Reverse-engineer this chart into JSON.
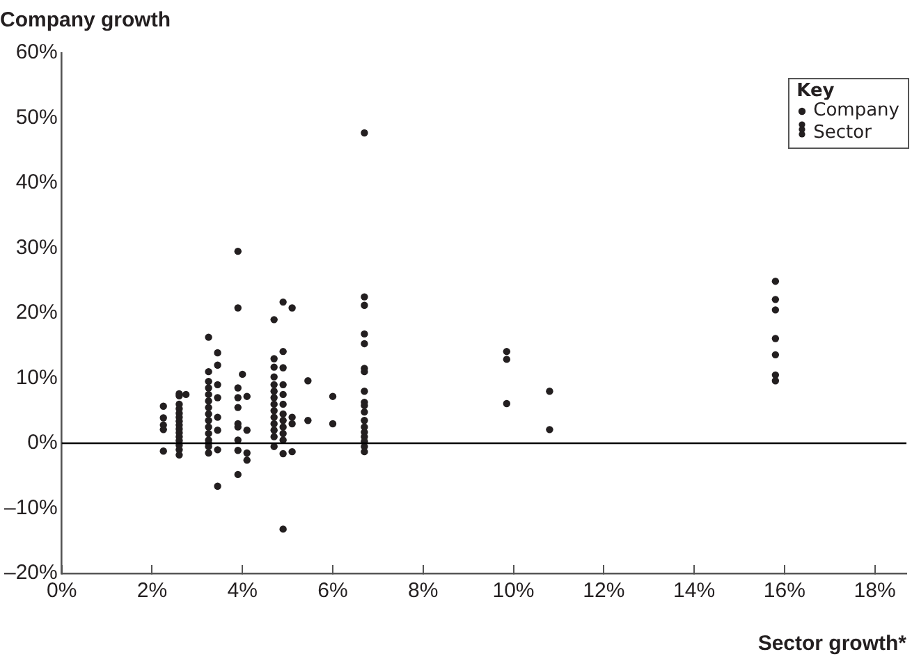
{
  "chart_data": {
    "type": "scatter",
    "ylabel": "Company growth",
    "xlabel": "Sector growth*",
    "legend_title": "Key",
    "annotations": [
      "Sector"
    ],
    "xlim": [
      0,
      18.7
    ],
    "xticks": [
      {
        "value": 0,
        "label": "0%"
      },
      {
        "value": 2,
        "label": "2%"
      },
      {
        "value": 4,
        "label": "4%"
      },
      {
        "value": 6,
        "label": "6%"
      },
      {
        "value": 8,
        "label": "8%"
      },
      {
        "value": 10,
        "label": "10%"
      },
      {
        "value": 12,
        "label": "12%"
      },
      {
        "value": 14,
        "label": "14%"
      },
      {
        "value": 16,
        "label": "16%"
      },
      {
        "value": 18,
        "label": "18%"
      }
    ],
    "ylim": [
      -20,
      60
    ],
    "yticks": [
      {
        "value": -20,
        "label": "–20%"
      },
      {
        "value": -10,
        "label": "–10%"
      },
      {
        "value": 0,
        "label": "0%"
      },
      {
        "value": 10,
        "label": "10%"
      },
      {
        "value": 20,
        "label": "20%"
      },
      {
        "value": 30,
        "label": "30%"
      },
      {
        "value": 40,
        "label": "40%"
      },
      {
        "value": 50,
        "label": "50%"
      },
      {
        "value": 60,
        "label": "60%"
      }
    ],
    "ref_lines": [
      {
        "axis": "y",
        "value": 0,
        "color": "#000000"
      }
    ],
    "grid": false,
    "legend": "top right",
    "marker": "circle",
    "series": [
      {
        "name": "Company",
        "color": "#231f20",
        "x": [
          2.25,
          2.25,
          2.25,
          2.25,
          2.25,
          2.6,
          2.6,
          2.6,
          2.6,
          2.6,
          2.6,
          2.6,
          2.6,
          2.6,
          2.6,
          2.6,
          2.6,
          2.6,
          2.6,
          2.6,
          2.75,
          3.25,
          3.25,
          3.25,
          3.25,
          3.25,
          3.25,
          3.25,
          3.25,
          3.25,
          3.25,
          3.25,
          3.25,
          3.25,
          3.25,
          3.25,
          3.45,
          3.45,
          3.45,
          3.45,
          3.45,
          3.45,
          3.45,
          3.45,
          3.9,
          3.9,
          4.0,
          3.9,
          3.9,
          3.9,
          3.9,
          3.9,
          3.9,
          3.9,
          3.9,
          4.1,
          4.1,
          4.1,
          4.1,
          4.7,
          4.7,
          4.7,
          4.7,
          4.7,
          4.7,
          4.7,
          4.7,
          4.7,
          4.7,
          4.7,
          4.7,
          4.7,
          4.7,
          4.9,
          4.9,
          4.9,
          4.9,
          4.9,
          4.9,
          4.9,
          4.9,
          4.9,
          4.9,
          4.9,
          4.9,
          4.9,
          5.1,
          5.1,
          5.1,
          5.1,
          5.45,
          5.45,
          6.0,
          6.0,
          6.7,
          6.7,
          6.7,
          6.7,
          6.7,
          6.7,
          6.7,
          6.7,
          6.7,
          6.7,
          6.7,
          6.7,
          6.7,
          6.7,
          6.7,
          6.7,
          6.7,
          6.7,
          9.85,
          9.85,
          9.85,
          10.8,
          10.8,
          15.8,
          15.8,
          15.8,
          15.8,
          15.8,
          15.8,
          15.8
        ],
        "values": [
          5.7,
          3.9,
          2.8,
          2.1,
          -1.2,
          7.6,
          7.3,
          6,
          5.3,
          4.6,
          4,
          3.4,
          2.8,
          2.2,
          1.6,
          1,
          0.4,
          -0.3,
          -1,
          -1.8,
          7.5,
          16.3,
          11,
          9.5,
          8.5,
          7.5,
          6.5,
          5.5,
          4.5,
          3.5,
          2.5,
          1.5,
          0.5,
          0,
          -0.5,
          -1.5,
          13.9,
          12,
          9,
          7,
          4,
          2,
          -1,
          -6.6,
          29.5,
          20.8,
          10.6,
          8.5,
          7,
          5.5,
          3,
          2.5,
          0.5,
          -1.1,
          -4.8,
          7.2,
          2,
          -1.5,
          -2.6,
          19,
          13,
          11.7,
          10.2,
          9,
          8,
          7,
          6,
          5,
          4,
          3,
          2,
          1,
          -0.5,
          21.7,
          14.1,
          11.6,
          9,
          7.5,
          6,
          4.5,
          3.5,
          2.5,
          1.5,
          0.5,
          -1.6,
          -13.2,
          20.8,
          4,
          3,
          -1.3,
          9.6,
          3.5,
          7.2,
          3,
          47.7,
          22.5,
          21.2,
          16.8,
          15.3,
          11.5,
          11,
          8,
          6.3,
          5.8,
          4.8,
          3.5,
          2.5,
          1.7,
          1,
          0.3,
          -0.5,
          -1.3,
          14.1,
          12.9,
          6.1,
          8,
          2.1,
          24.9,
          22.1,
          20.5,
          16.1,
          13.6,
          10.5,
          9.6
        ]
      }
    ]
  }
}
